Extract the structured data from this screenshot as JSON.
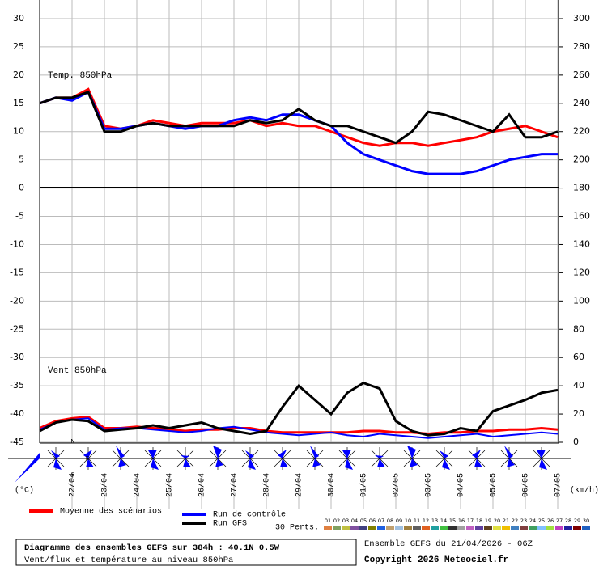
{
  "chart_data": {
    "type": "line",
    "temp_label": "Temp. 850hPa",
    "wind_label": "Vent 850hPa",
    "ylabel": "(°C)",
    "y2label": "(km/h)",
    "categories": [
      null,
      null,
      "22/04",
      null,
      "23/04",
      null,
      "24/04",
      null,
      "25/04",
      null,
      "26/04",
      null,
      "27/04",
      null,
      "28/04",
      null,
      "29/04",
      null,
      "30/04",
      null,
      "01/05",
      null,
      "02/05",
      null,
      "03/05",
      null,
      "04/05",
      null,
      "05/05",
      null,
      "06/05",
      null,
      "07/05"
    ],
    "ylim": [
      -45,
      30
    ],
    "yticks": [
      30,
      25,
      20,
      15,
      10,
      5,
      0,
      -5,
      -10,
      -15,
      -20,
      -25,
      -30,
      -35,
      -40,
      -45
    ],
    "y2lim": [
      0,
      300
    ],
    "y2ticks": [
      300,
      280,
      260,
      240,
      220,
      200,
      180,
      160,
      140,
      120,
      100,
      80,
      60,
      40,
      20,
      0
    ],
    "grid": true,
    "series": [
      {
        "name": "Moyenne des scénarios",
        "color": "#ff0000",
        "width": 3,
        "axis": "y",
        "values": [
          15,
          16,
          16,
          17.5,
          11,
          10.5,
          11,
          12,
          11.5,
          11,
          11.5,
          11.5,
          11.5,
          12,
          11,
          11.5,
          11,
          11,
          10,
          9,
          8,
          7.5,
          8,
          8,
          7.5,
          8,
          8.5,
          9,
          10,
          10.5,
          11,
          10,
          9
        ]
      },
      {
        "name": "Run de contrôle",
        "color": "#0000ff",
        "width": 3,
        "axis": "y",
        "values": [
          15,
          16,
          15.5,
          17,
          10.5,
          10.5,
          11,
          11.5,
          11,
          10.5,
          11,
          11,
          12,
          12.5,
          12,
          13,
          13,
          12,
          11,
          8,
          6,
          5,
          4,
          3,
          2.5,
          2.5,
          2.5,
          3,
          4,
          5,
          5.5,
          6,
          6
        ]
      },
      {
        "name": "Run GFS",
        "color": "#000000",
        "width": 3,
        "axis": "y",
        "values": [
          15,
          16,
          16,
          17,
          10,
          10,
          11,
          11.5,
          11,
          11,
          11,
          11,
          11,
          12,
          11.5,
          12,
          14,
          12,
          11,
          11,
          10,
          9,
          8,
          10,
          13.5,
          13,
          12,
          11,
          10,
          13,
          9,
          9,
          10
        ]
      },
      {
        "name": "Moyenne des scénarios",
        "color": "#ff0000",
        "width": 3,
        "axis": "y2",
        "values": [
          10,
          15,
          17,
          18,
          10,
          10,
          11,
          10,
          9,
          8,
          9,
          9,
          10,
          10,
          8,
          7,
          7,
          7,
          7,
          7,
          8,
          8,
          7,
          7,
          6,
          7,
          7,
          8,
          8,
          9,
          9,
          10,
          9
        ]
      },
      {
        "name": "Run de contrôle",
        "color": "#0000ff",
        "width": 2,
        "axis": "y2",
        "values": [
          9,
          14,
          16,
          17,
          9,
          10,
          10,
          9,
          8,
          7,
          8,
          10,
          11,
          9,
          7,
          6,
          5,
          6,
          7,
          5,
          4,
          6,
          5,
          4,
          3,
          4,
          5,
          6,
          4,
          5,
          6,
          7,
          6
        ]
      },
      {
        "name": "Run GFS",
        "color": "#000000",
        "width": 3,
        "axis": "y2",
        "values": [
          8,
          14,
          16,
          15,
          8,
          9,
          10,
          12,
          10,
          12,
          14,
          10,
          8,
          6,
          8,
          25,
          40,
          30,
          20,
          35,
          42,
          38,
          15,
          8,
          5,
          6,
          10,
          8,
          22,
          26,
          30,
          35,
          37
        ]
      }
    ],
    "legend_extra": "30 Perts.",
    "perturbations": [
      {
        "name": "01",
        "color": "#e08040"
      },
      {
        "name": "02",
        "color": "#80a060"
      },
      {
        "name": "03",
        "color": "#c0c040"
      },
      {
        "name": "04",
        "color": "#8050a0"
      },
      {
        "name": "05",
        "color": "#404080"
      },
      {
        "name": "06",
        "color": "#808000"
      },
      {
        "name": "07",
        "color": "#2060e0"
      },
      {
        "name": "08",
        "color": "#c0a070"
      },
      {
        "name": "09",
        "color": "#a0c0e0"
      },
      {
        "name": "10",
        "color": "#a08040"
      },
      {
        "name": "11",
        "color": "#606060"
      },
      {
        "name": "12",
        "color": "#e06020"
      },
      {
        "name": "13",
        "color": "#20a0a0"
      },
      {
        "name": "14",
        "color": "#40c040"
      },
      {
        "name": "15",
        "color": "#303030"
      },
      {
        "name": "16",
        "color": "#a0a0a0"
      },
      {
        "name": "17",
        "color": "#c060c0"
      },
      {
        "name": "18",
        "color": "#6040a0"
      },
      {
        "name": "19",
        "color": "#604020"
      },
      {
        "name": "20",
        "color": "#e0e040"
      },
      {
        "name": "21",
        "color": "#f0c000"
      },
      {
        "name": "22",
        "color": "#4080c0"
      },
      {
        "name": "23",
        "color": "#804040"
      },
      {
        "name": "24",
        "color": "#40a060"
      },
      {
        "name": "25",
        "color": "#80c0ff"
      },
      {
        "name": "26",
        "color": "#a0e040"
      },
      {
        "name": "27",
        "color": "#c040c0"
      },
      {
        "name": "28",
        "color": "#2020a0"
      },
      {
        "name": "29",
        "color": "#800000"
      },
      {
        "name": "30",
        "color": "#2060c0"
      }
    ],
    "info_title": "Diagramme des ensembles GEFS sur 384h : 40.1N 0.5W",
    "info_subtitle": "Vent/flux et température au niveau 850hPa",
    "run_info": "Ensemble GEFS du 21/04/2026 - 06Z",
    "copyright": "Copyright 2026 Meteociel.fr"
  }
}
